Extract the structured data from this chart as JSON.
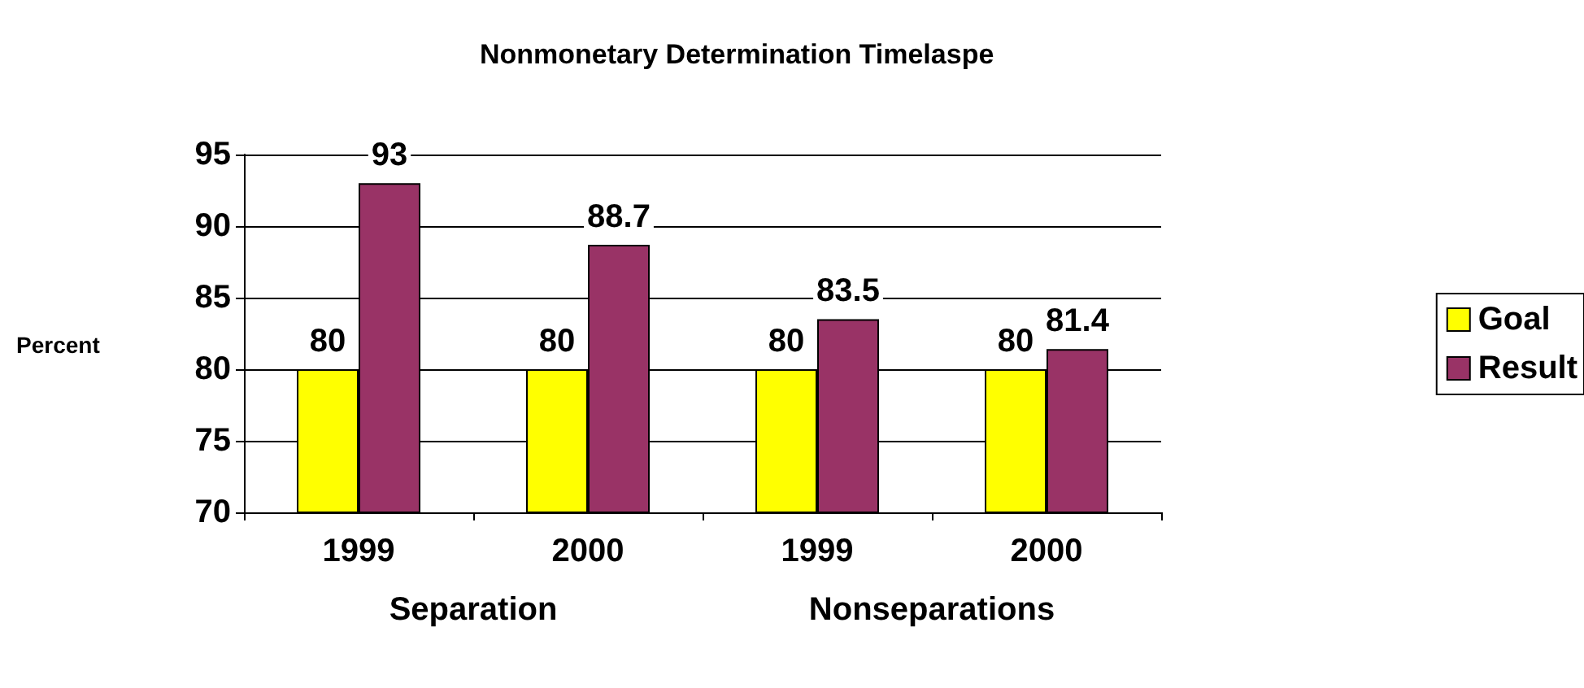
{
  "chart_data": {
    "type": "bar",
    "title": "Nonmonetary Determination Timelaspe",
    "ylabel": "Percent",
    "categories": [
      "1999",
      "2000",
      "1999",
      "2000"
    ],
    "series": [
      {
        "name": "Goal",
        "color": "#ffff00",
        "values": [
          80,
          80,
          80,
          80
        ]
      },
      {
        "name": "Result",
        "color": "#993366",
        "values": [
          93,
          88.7,
          83.5,
          81.4
        ]
      }
    ],
    "ylim": [
      70,
      95
    ],
    "yticks": [
      70,
      75,
      80,
      85,
      90,
      95
    ],
    "grid": "y",
    "legend": "right",
    "data_labels": true,
    "annotations": [
      "Separation",
      "Nonseparations"
    ]
  }
}
